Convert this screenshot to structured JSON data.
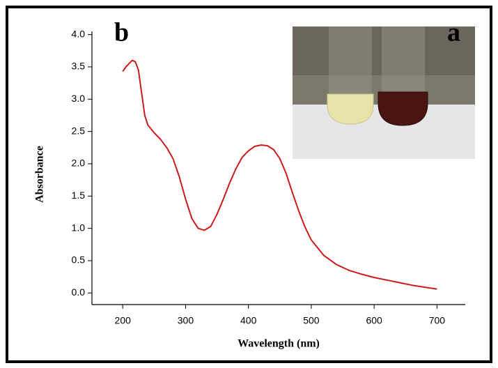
{
  "chart_data": {
    "type": "line",
    "xlabel": "Wavelength (nm)",
    "ylabel": "Absorbance",
    "panel_labels": [
      "b",
      "a"
    ],
    "x": [
      200,
      205,
      210,
      215,
      220,
      225,
      230,
      235,
      240,
      250,
      260,
      270,
      280,
      290,
      300,
      310,
      320,
      330,
      340,
      350,
      360,
      370,
      380,
      390,
      400,
      410,
      420,
      430,
      440,
      450,
      460,
      470,
      480,
      490,
      500,
      520,
      540,
      560,
      580,
      600,
      620,
      640,
      660,
      680,
      700
    ],
    "values": [
      3.43,
      3.5,
      3.55,
      3.6,
      3.58,
      3.45,
      3.1,
      2.75,
      2.6,
      2.48,
      2.38,
      2.25,
      2.08,
      1.8,
      1.45,
      1.15,
      1.0,
      0.97,
      1.03,
      1.22,
      1.45,
      1.7,
      1.92,
      2.1,
      2.2,
      2.27,
      2.29,
      2.28,
      2.22,
      2.08,
      1.85,
      1.55,
      1.27,
      1.02,
      0.82,
      0.58,
      0.44,
      0.35,
      0.29,
      0.24,
      0.2,
      0.16,
      0.12,
      0.09,
      0.06
    ],
    "color": "#cc1a1a",
    "xlim": [
      151,
      745
    ],
    "ylim": [
      -0.18,
      4.05
    ],
    "xticks": [
      200,
      300,
      400,
      500,
      600,
      700
    ],
    "yticks": [
      {
        "value": 0,
        "label": "0.0"
      },
      {
        "value": 0.5,
        "label": "0.5"
      },
      {
        "value": 1,
        "label": "1.0"
      },
      {
        "value": 1.5,
        "label": "1.5"
      },
      {
        "value": 2,
        "label": "2.0"
      },
      {
        "value": 2.5,
        "label": "2.5"
      },
      {
        "value": 3,
        "label": "3.0"
      },
      {
        "value": 3.5,
        "label": "3.5"
      },
      {
        "value": 4,
        "label": "4.0"
      }
    ]
  }
}
